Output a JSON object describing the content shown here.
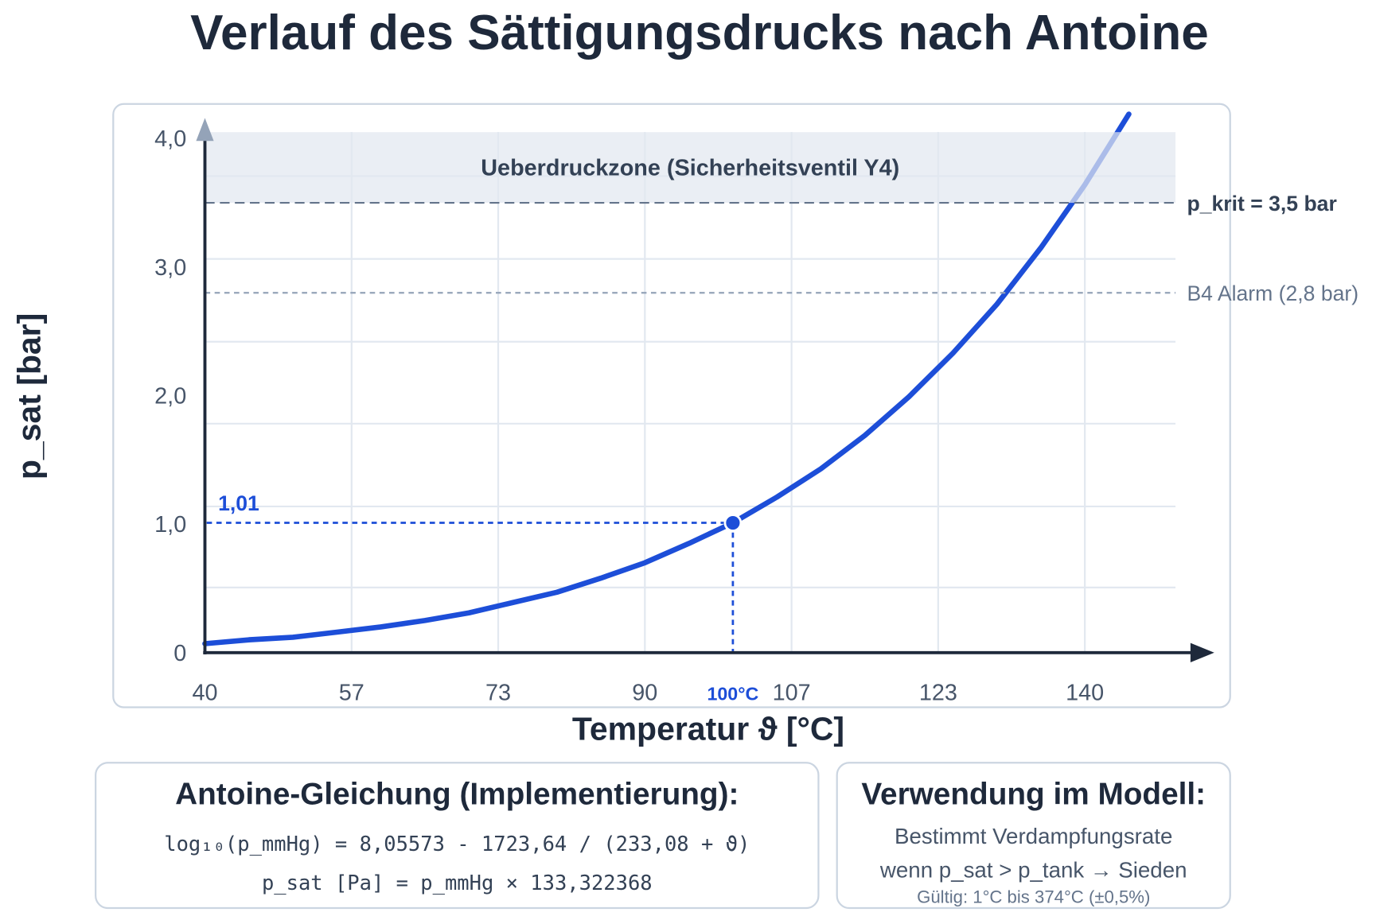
{
  "chart_data": {
    "type": "line",
    "title": "Verlauf des Sättigungsdrucks nach Antoine",
    "xlabel": "Temperatur ϑ [°C]",
    "ylabel": "p_sat [bar]",
    "xlim": [
      40,
      150
    ],
    "ylim": [
      0,
      4.05
    ],
    "grid": true,
    "x_ticks": [
      {
        "value": 40,
        "label": "40"
      },
      {
        "value": 56.67,
        "label": "57"
      },
      {
        "value": 73.33,
        "label": "73"
      },
      {
        "value": 90,
        "label": "90"
      },
      {
        "value": 106.67,
        "label": "107"
      },
      {
        "value": 123.33,
        "label": "123"
      },
      {
        "value": 140,
        "label": "140"
      }
    ],
    "y_ticks": [
      {
        "value": 0,
        "label": "0"
      },
      {
        "value": 1,
        "label": "1,0"
      },
      {
        "value": 2,
        "label": "2,0"
      },
      {
        "value": 3,
        "label": "3,0"
      },
      {
        "value": 4,
        "label": "4,0"
      }
    ],
    "series": [
      {
        "color": "#1d4ed8",
        "x": [
          40,
          45,
          50,
          55,
          60,
          65,
          70,
          75,
          80,
          85,
          90,
          95,
          100,
          105,
          110,
          115,
          120,
          125,
          130,
          135,
          140,
          145
        ],
        "y": [
          0.07,
          0.1,
          0.12,
          0.16,
          0.2,
          0.25,
          0.31,
          0.39,
          0.47,
          0.58,
          0.7,
          0.85,
          1.01,
          1.21,
          1.43,
          1.69,
          1.99,
          2.33,
          2.71,
          3.15,
          3.64,
          4.19
        ]
      }
    ],
    "zones": [
      {
        "y_from": 3.5,
        "y_to": 4.05,
        "label": "Ueberdruckzone (Sicherheitsventil Y4)",
        "color": "#e2e8f0"
      }
    ],
    "reference_lines": [
      {
        "y": 3.5,
        "label": "p_krit = 3,5 bar",
        "style": "dashed",
        "color": "#64748b"
      },
      {
        "y": 2.8,
        "label": "B4 Alarm (2,8 bar)",
        "style": "dashed",
        "color": "#94a3b8"
      }
    ],
    "highlight": {
      "x": 100,
      "y": 1.01,
      "x_label": "100°C",
      "y_label": "1,01",
      "color": "#1d4ed8"
    }
  },
  "formula_box": {
    "title": "Antoine-Gleichung (Implementierung):",
    "lines": [
      "log₁₀(p_mmHg) = 8,05573 - 1723,64 / (233,08 + ϑ)",
      "p_sat [Pa] = p_mmHg × 133,322368"
    ]
  },
  "usage_box": {
    "title": "Verwendung im Modell:",
    "lines": [
      "Bestimmt Verdampfungsrate",
      "wenn p_sat > p_tank → Sieden"
    ],
    "note": "Gültig: 1°C bis 374°C (±0,5%)"
  }
}
